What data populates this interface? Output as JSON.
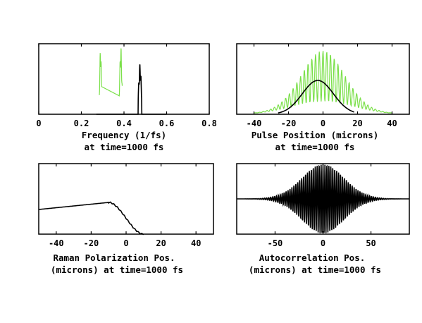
{
  "chart_data": [
    {
      "id": "freq",
      "type": "line",
      "xlabel": "Frequency (1/fs)",
      "xlabel2": "at time=1000 fs",
      "xlim": [
        0,
        0.8
      ],
      "ylim": [
        0,
        1
      ],
      "xticks": [
        "0",
        "0.2",
        "0.4",
        "0.6",
        "0.8"
      ],
      "xtick_values": [
        0,
        0.2,
        0.4,
        0.6,
        0.8
      ],
      "grid": false,
      "series": [
        {
          "color": "#7be04a",
          "peaks": [
            [
              0.29,
              0.97,
              0.004
            ],
            [
              0.385,
              0.98,
              0.005
            ]
          ]
        },
        {
          "color": "#000000",
          "peaks": [
            [
              0.475,
              0.72,
              0.006
            ]
          ],
          "baseline": [
            0.27,
            0.6
          ]
        }
      ]
    },
    {
      "id": "pulse",
      "type": "line",
      "xlabel": "Pulse Position (microns)",
      "xlabel2": "at time=1000 fs",
      "xlim": [
        -50,
        50
      ],
      "ylim": [
        0,
        1
      ],
      "xticks": [
        "-40",
        "-20",
        "0",
        "20",
        "40"
      ],
      "xtick_values": [
        -40,
        -20,
        0,
        20,
        40
      ],
      "grid": false,
      "series": [
        {
          "color": "#7be04a",
          "envelope": {
            "center": 0,
            "sigma": 12,
            "amp": 0.72,
            "floor": 0.18
          }
        },
        {
          "color": "#000000",
          "envelope": {
            "center": -3,
            "sigma": 9,
            "amp": 0.48
          }
        }
      ]
    },
    {
      "id": "raman",
      "type": "line",
      "xlabel": "Raman Polarization Pos.",
      "xlabel2": "(microns) at time=1000 fs",
      "xlim": [
        -50,
        50
      ],
      "ylim": [
        0,
        1
      ],
      "xticks": [
        "-40",
        "-20",
        "0",
        "20",
        "40"
      ],
      "xtick_values": [
        -40,
        -20,
        0,
        20,
        40
      ],
      "grid": false,
      "series": [
        {
          "color": "#000000",
          "points": [
            [
              -50,
              0.35
            ],
            [
              -10,
              0.45
            ],
            [
              10,
              0.0
            ]
          ]
        }
      ]
    },
    {
      "id": "autocorr",
      "type": "line",
      "xlabel": "Autocorrelation Pos.",
      "xlabel2": "(microns) at time=1000 fs",
      "xlim": [
        -90,
        90
      ],
      "ylim": [
        -1,
        1
      ],
      "xticks": [
        "-50",
        "0",
        "50"
      ],
      "xtick_values": [
        -50,
        0,
        50
      ],
      "grid": false,
      "series": [
        {
          "color": "#000000",
          "envelope": {
            "center": 0,
            "sigma": 22,
            "amp": 0.98
          }
        }
      ]
    }
  ]
}
